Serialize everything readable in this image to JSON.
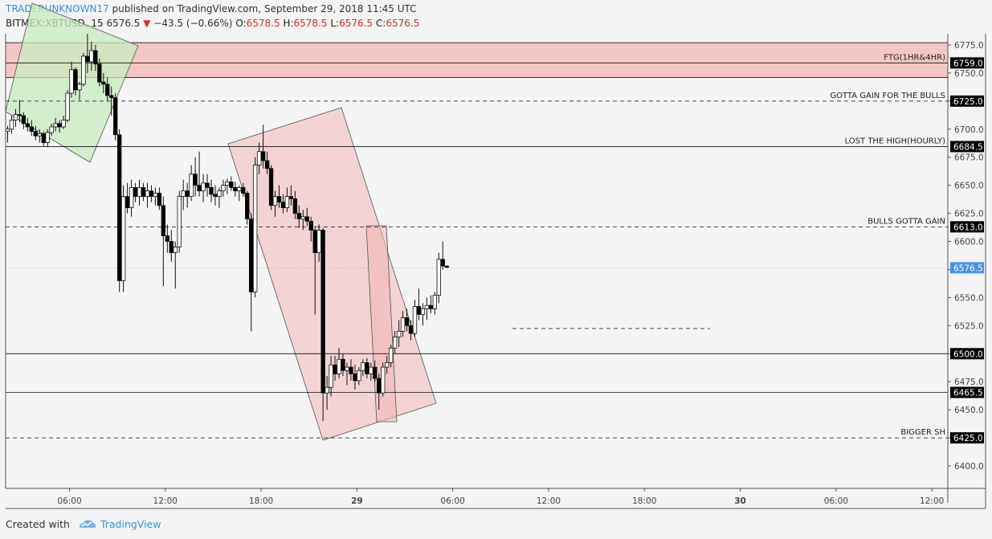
{
  "header": {
    "author": "TRADERUNKNOWN17",
    "published": "published on TradingView.com, September 29, 2018 11:45 UTC"
  },
  "ohlc": {
    "symbol": "BITMEX:XBTUSD, 15",
    "last": "6576.5",
    "change": "−43.5 (−0.66%)",
    "o_label": "O:",
    "o_value": "6578.5",
    "h_label": "H:",
    "h_value": "6578.5",
    "l_label": "L:",
    "l_value": "6576.5",
    "c_label": "C:",
    "c_value": "6576.5"
  },
  "footer": {
    "created": "Created with",
    "brand": "TradingView"
  },
  "colors": {
    "up": "#ffffff",
    "down": "#000000",
    "wick": "#111111",
    "resistance_zone": "#f5c6c6",
    "green_channel": "#c8ecc0",
    "red_channel": "#f2b8b8",
    "last_price_tag": "#4a90e2"
  },
  "chart_data": {
    "type": "candlestick",
    "timeframe": "15",
    "x_start": "2018-09-28 02:00",
    "x_end": "2018-09-30 13:00",
    "ylim": [
      6380,
      6785
    ],
    "y_ticks": [
      "6400.0",
      "6425.0",
      "6450.0",
      "6475.0",
      "6500.0",
      "6525.0",
      "6550.0",
      "6575.0",
      "6600.0",
      "6625.0",
      "6650.0",
      "6675.0",
      "6700.0",
      "6725.0",
      "6750.0",
      "6775.0"
    ],
    "x_ticks": [
      {
        "label": "06:00",
        "time": "2018-09-28 06:00",
        "bold": false
      },
      {
        "label": "12:00",
        "time": "2018-09-28 12:00",
        "bold": false
      },
      {
        "label": "18:00",
        "time": "2018-09-28 18:00",
        "bold": false
      },
      {
        "label": "29",
        "time": "2018-09-29 00:00",
        "bold": true
      },
      {
        "label": "06:00",
        "time": "2018-09-29 06:00",
        "bold": false
      },
      {
        "label": "12:00",
        "time": "2018-09-29 12:00",
        "bold": false
      },
      {
        "label": "18:00",
        "time": "2018-09-29 18:00",
        "bold": false
      },
      {
        "label": "30",
        "time": "2018-09-30 00:00",
        "bold": true
      },
      {
        "label": "06:00",
        "time": "2018-09-30 06:00",
        "bold": false
      },
      {
        "label": "12:00",
        "time": "2018-09-30 12:00",
        "bold": false
      }
    ],
    "levels": [
      {
        "price": 6759.0,
        "style": "solid",
        "label": "FTG(1HR&4HR)",
        "tag": "6759.0"
      },
      {
        "price": 6725.0,
        "style": "dashed",
        "label": "GOTTA GAIN FOR THE BULLS",
        "tag": "6725.0"
      },
      {
        "price": 6684.5,
        "style": "solid",
        "label": "LOST THE HIGH(HOURLY)",
        "tag": "6684.5"
      },
      {
        "price": 6613.0,
        "style": "dashed",
        "label": "BULLS GOTTA GAIN",
        "tag": "6613.0"
      },
      {
        "price": 6500.0,
        "style": "solid",
        "label": "",
        "tag": "6500.0"
      },
      {
        "price": 6465.5,
        "style": "solid",
        "label": "",
        "tag": "6465.5"
      },
      {
        "price": 6425.0,
        "style": "dashed",
        "label": "BIGGER SH",
        "tag": "6425.0"
      }
    ],
    "last_price": {
      "price": 6576.5,
      "tag": "6576.5"
    },
    "resistance_zone": {
      "top": 6777,
      "bottom": 6746
    },
    "candles": [
      [
        6698,
        6703,
        6688,
        6700
      ],
      [
        6700,
        6712,
        6696,
        6708
      ],
      [
        6708,
        6718,
        6702,
        6713
      ],
      [
        6713,
        6726,
        6706,
        6712
      ],
      [
        6712,
        6715,
        6700,
        6705
      ],
      [
        6705,
        6710,
        6698,
        6702
      ],
      [
        6702,
        6708,
        6694,
        6698
      ],
      [
        6698,
        6703,
        6690,
        6694
      ],
      [
        6694,
        6700,
        6688,
        6696
      ],
      [
        6696,
        6698,
        6685,
        6688
      ],
      [
        6688,
        6700,
        6684,
        6697
      ],
      [
        6697,
        6705,
        6694,
        6702
      ],
      [
        6702,
        6710,
        6698,
        6705
      ],
      [
        6705,
        6708,
        6697,
        6702
      ],
      [
        6702,
        6712,
        6700,
        6708
      ],
      [
        6708,
        6735,
        6706,
        6732
      ],
      [
        6732,
        6760,
        6728,
        6753
      ],
      [
        6753,
        6755,
        6730,
        6735
      ],
      [
        6735,
        6742,
        6726,
        6740
      ],
      [
        6740,
        6768,
        6738,
        6765
      ],
      [
        6765,
        6785,
        6750,
        6760
      ],
      [
        6760,
        6778,
        6752,
        6770
      ],
      [
        6770,
        6775,
        6752,
        6758
      ],
      [
        6758,
        6763,
        6738,
        6742
      ],
      [
        6742,
        6750,
        6732,
        6740
      ],
      [
        6740,
        6746,
        6725,
        6730
      ],
      [
        6730,
        6738,
        6712,
        6728
      ],
      [
        6728,
        6732,
        6690,
        6695
      ],
      [
        6695,
        6700,
        6555,
        6565
      ],
      [
        6565,
        6650,
        6555,
        6640
      ],
      [
        6640,
        6652,
        6625,
        6630
      ],
      [
        6630,
        6655,
        6622,
        6648
      ],
      [
        6648,
        6652,
        6635,
        6640
      ],
      [
        6640,
        6655,
        6632,
        6648
      ],
      [
        6648,
        6652,
        6636,
        6640
      ],
      [
        6640,
        6652,
        6630,
        6645
      ],
      [
        6645,
        6650,
        6635,
        6640
      ],
      [
        6640,
        6648,
        6632,
        6643
      ],
      [
        6643,
        6648,
        6628,
        6632
      ],
      [
        6632,
        6640,
        6560,
        6605
      ],
      [
        6605,
        6615,
        6590,
        6600
      ],
      [
        6600,
        6610,
        6582,
        6590
      ],
      [
        6590,
        6600,
        6558,
        6595
      ],
      [
        6595,
        6645,
        6590,
        6640
      ],
      [
        6640,
        6655,
        6628,
        6645
      ],
      [
        6645,
        6652,
        6630,
        6640
      ],
      [
        6640,
        6668,
        6636,
        6660
      ],
      [
        6660,
        6675,
        6640,
        6650
      ],
      [
        6650,
        6680,
        6640,
        6645
      ],
      [
        6645,
        6660,
        6635,
        6652
      ],
      [
        6652,
        6660,
        6640,
        6648
      ],
      [
        6648,
        6655,
        6635,
        6642
      ],
      [
        6642,
        6650,
        6632,
        6640
      ],
      [
        6640,
        6648,
        6630,
        6645
      ],
      [
        6645,
        6655,
        6640,
        6650
      ],
      [
        6650,
        6656,
        6642,
        6653
      ],
      [
        6653,
        6658,
        6645,
        6648
      ],
      [
        6648,
        6653,
        6640,
        6645
      ],
      [
        6645,
        6650,
        6636,
        6648
      ],
      [
        6648,
        6652,
        6640,
        6643
      ],
      [
        6643,
        6645,
        6615,
        6620
      ],
      [
        6620,
        6625,
        6520,
        6555
      ],
      [
        6555,
        6675,
        6550,
        6668
      ],
      [
        6668,
        6688,
        6660,
        6680
      ],
      [
        6680,
        6704,
        6665,
        6672
      ],
      [
        6672,
        6680,
        6660,
        6665
      ],
      [
        6665,
        6668,
        6628,
        6632
      ],
      [
        6632,
        6645,
        6622,
        6640
      ],
      [
        6640,
        6650,
        6630,
        6635
      ],
      [
        6635,
        6642,
        6625,
        6630
      ],
      [
        6630,
        6648,
        6626,
        6640
      ],
      [
        6640,
        6650,
        6632,
        6638
      ],
      [
        6638,
        6645,
        6620,
        6625
      ],
      [
        6625,
        6632,
        6612,
        6620
      ],
      [
        6620,
        6628,
        6610,
        6622
      ],
      [
        6622,
        6630,
        6614,
        6618
      ],
      [
        6618,
        6622,
        6600,
        6610
      ],
      [
        6610,
        6614,
        6535,
        6590
      ],
      [
        6590,
        6615,
        6582,
        6610
      ],
      [
        6610,
        6612,
        6440,
        6465
      ],
      [
        6465,
        6480,
        6450,
        6470
      ],
      [
        6470,
        6498,
        6462,
        6490
      ],
      [
        6490,
        6498,
        6476,
        6482
      ],
      [
        6482,
        6505,
        6478,
        6495
      ],
      [
        6495,
        6500,
        6480,
        6485
      ],
      [
        6485,
        6492,
        6472,
        6488
      ],
      [
        6488,
        6495,
        6476,
        6482
      ],
      [
        6482,
        6490,
        6468,
        6476
      ],
      [
        6476,
        6488,
        6472,
        6485
      ],
      [
        6485,
        6495,
        6480,
        6492
      ],
      [
        6492,
        6496,
        6478,
        6482
      ],
      [
        6482,
        6492,
        6476,
        6488
      ],
      [
        6488,
        6494,
        6475,
        6478
      ],
      [
        6478,
        6482,
        6450,
        6465
      ],
      [
        6465,
        6492,
        6462,
        6488
      ],
      [
        6488,
        6498,
        6482,
        6492
      ],
      [
        6492,
        6508,
        6488,
        6505
      ],
      [
        6505,
        6520,
        6500,
        6515
      ],
      [
        6515,
        6530,
        6506,
        6520
      ],
      [
        6520,
        6538,
        6515,
        6532
      ],
      [
        6532,
        6540,
        6520,
        6525
      ],
      [
        6525,
        6530,
        6512,
        6518
      ],
      [
        6518,
        6548,
        6515,
        6542
      ],
      [
        6542,
        6558,
        6530,
        6535
      ],
      [
        6535,
        6545,
        6525,
        6540
      ],
      [
        6540,
        6550,
        6530,
        6543
      ],
      [
        6543,
        6552,
        6536,
        6540
      ],
      [
        6540,
        6555,
        6535,
        6552
      ],
      [
        6552,
        6590,
        6545,
        6584
      ],
      [
        6584,
        6600,
        6575,
        6578
      ],
      [
        6578,
        6579,
        6576,
        6577
      ]
    ]
  }
}
